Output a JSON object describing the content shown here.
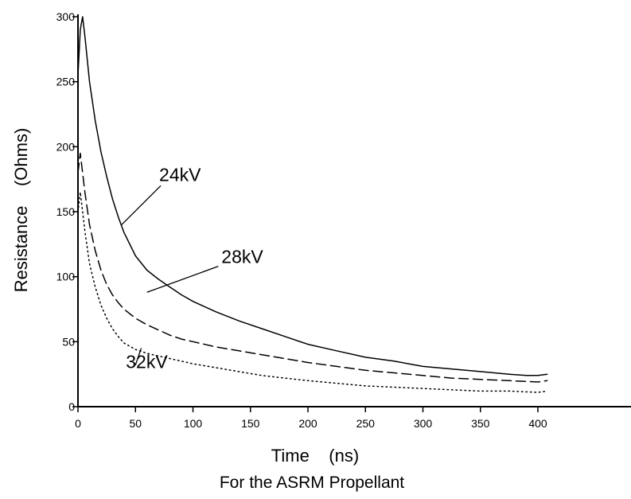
{
  "chart_data": {
    "type": "line",
    "title": "",
    "caption": "For the ASRM Propellant",
    "xlabel": "Time    (ns)",
    "ylabel": "Resistance    (Ohms)",
    "xlim": [
      0,
      410
    ],
    "ylim": [
      0,
      300
    ],
    "xticks": [
      0,
      50,
      100,
      150,
      200,
      250,
      300,
      350,
      400
    ],
    "yticks": [
      0,
      50,
      100,
      150,
      200,
      250,
      300
    ],
    "grid": false,
    "legend": "none",
    "series": [
      {
        "name": "24kV",
        "color": "#000000",
        "style": "solid",
        "x": [
          0,
          2,
          4,
          6,
          10,
          15,
          20,
          25,
          30,
          35,
          40,
          50,
          60,
          70,
          80,
          90,
          100,
          120,
          140,
          160,
          180,
          200,
          225,
          250,
          275,
          300,
          325,
          350,
          375,
          390,
          400,
          408
        ],
        "y": [
          255,
          290,
          300,
          285,
          250,
          220,
          196,
          177,
          160,
          146,
          134,
          116,
          105,
          98,
          92,
          86,
          81,
          73,
          66,
          60,
          54,
          48,
          43,
          38,
          35,
          31,
          29,
          27,
          25,
          24,
          24,
          25
        ]
      },
      {
        "name": "28kV",
        "color": "#000000",
        "style": "dashed",
        "x": [
          0,
          2,
          4,
          6,
          10,
          15,
          20,
          25,
          30,
          35,
          40,
          50,
          60,
          70,
          80,
          90,
          100,
          120,
          140,
          160,
          180,
          200,
          225,
          250,
          275,
          300,
          325,
          350,
          375,
          400,
          408
        ],
        "y": [
          180,
          195,
          180,
          165,
          140,
          120,
          105,
          94,
          86,
          80,
          75,
          68,
          63,
          59,
          55,
          52,
          50,
          46,
          43,
          40,
          37,
          34,
          31,
          28,
          26,
          24,
          22,
          21,
          20,
          19,
          20
        ]
      },
      {
        "name": "32kV",
        "color": "#000000",
        "style": "dotted",
        "x": [
          0,
          2,
          4,
          6,
          10,
          15,
          20,
          25,
          30,
          35,
          40,
          50,
          60,
          70,
          80,
          90,
          100,
          120,
          140,
          160,
          180,
          200,
          225,
          250,
          275,
          300,
          325,
          350,
          375,
          400,
          408
        ],
        "y": [
          150,
          165,
          150,
          135,
          110,
          92,
          78,
          68,
          60,
          54,
          49,
          44,
          41,
          39,
          37,
          35,
          33,
          30,
          27,
          24,
          22,
          20,
          18,
          16,
          15,
          14,
          13,
          12,
          12,
          11,
          12
        ]
      }
    ],
    "annotations": [
      {
        "text": "24kV",
        "series": 0,
        "x": 38,
        "y": 140,
        "label_at": [
          72,
          170
        ]
      },
      {
        "text": "28kV",
        "series": 1,
        "x": 60,
        "y": 88,
        "label_at": [
          122,
          108
        ]
      },
      {
        "text": "32kV",
        "series": 2,
        "x": 55,
        "y": 45,
        "label_at": [
          50,
          32
        ]
      }
    ]
  }
}
